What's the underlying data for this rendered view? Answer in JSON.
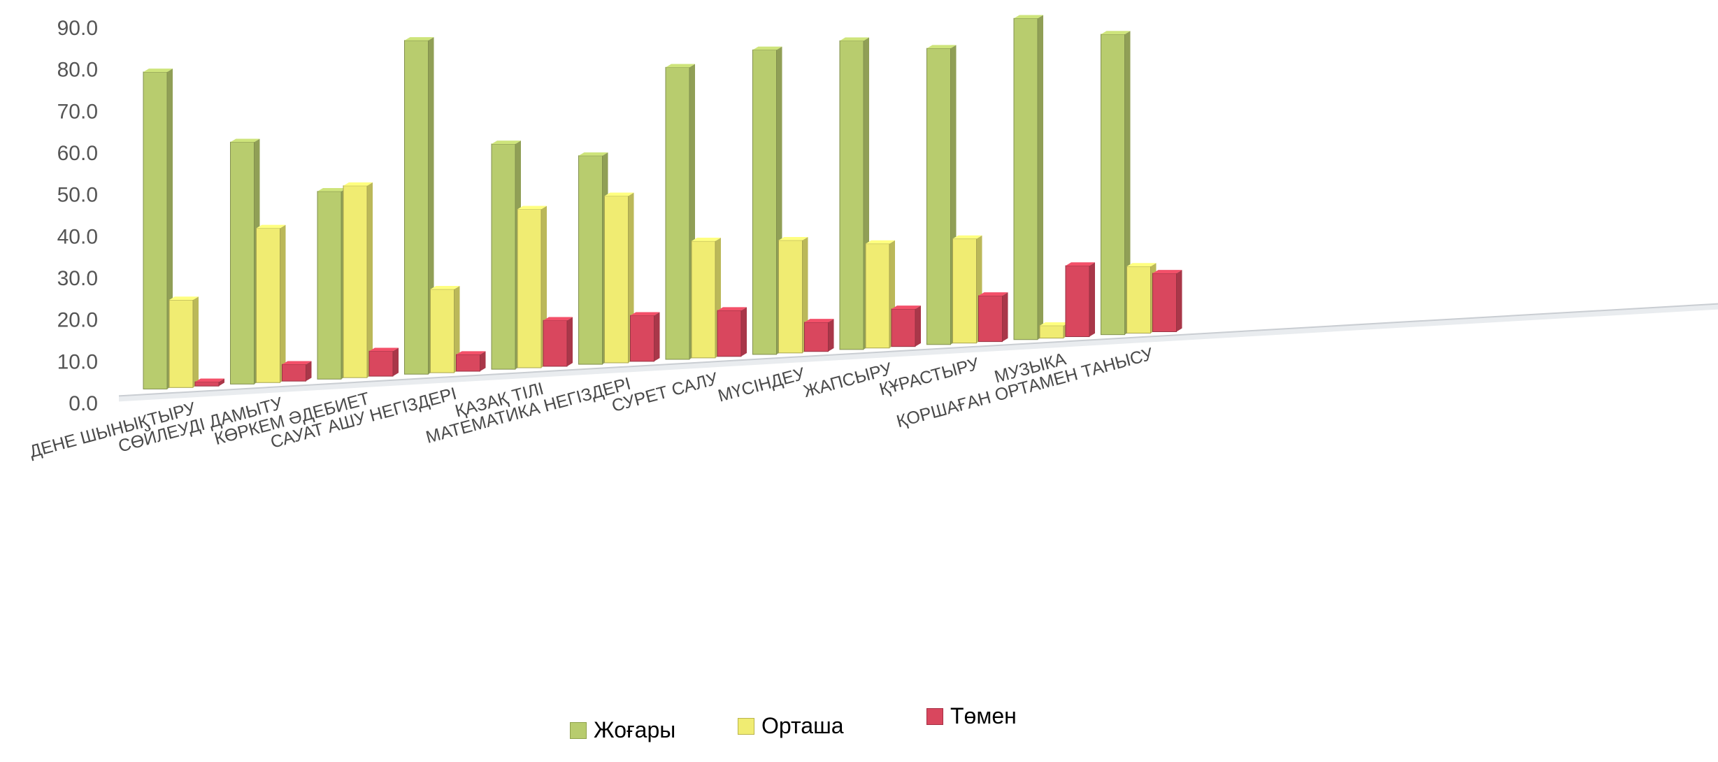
{
  "chart_data": {
    "type": "bar",
    "title": "",
    "xlabel": "",
    "ylabel": "",
    "ylim": [
      0,
      90
    ],
    "yticks": [
      "0.0",
      "10.0",
      "20.0",
      "30.0",
      "40.0",
      "50.0",
      "60.0",
      "70.0",
      "80.0",
      "90.0"
    ],
    "grid": false,
    "legend": "bottom",
    "categories": [
      "ДЕНЕ ШЫНЫҚТЫРУ",
      "СӨЙЛЕУДІ ДАМЫТУ",
      "КӨРКЕМ ӘДЕБИЕТ",
      "САУАТ АШУ НЕГІЗДЕРІ",
      "ҚАЗАҚ ТІЛІ",
      "МАТЕМАТИКА НЕГІЗДЕРІ",
      "СУРЕТ САЛУ",
      "МҮСІНДЕУ",
      "ЖАПСЫРУ",
      "ҚҰРАСТЫРУ",
      "МУЗЫКА",
      "ҚОРШАҒАН ОРТАМЕН ТАНЫСУ"
    ],
    "series": [
      {
        "name": "Жоғары",
        "color": "#b8cc6e",
        "values": [
          76,
          58,
          45,
          80,
          54,
          50,
          70,
          73,
          74,
          71,
          77,
          72
        ]
      },
      {
        "name": "Орташа",
        "color": "#f0ec72",
        "values": [
          21,
          37,
          46,
          20,
          38,
          40,
          28,
          27,
          25,
          25,
          3,
          16
        ]
      },
      {
        "name": "Төмен",
        "color": "#d9475e",
        "values": [
          1,
          4,
          6,
          4,
          11,
          11,
          11,
          7,
          9,
          11,
          17,
          14
        ]
      }
    ]
  }
}
